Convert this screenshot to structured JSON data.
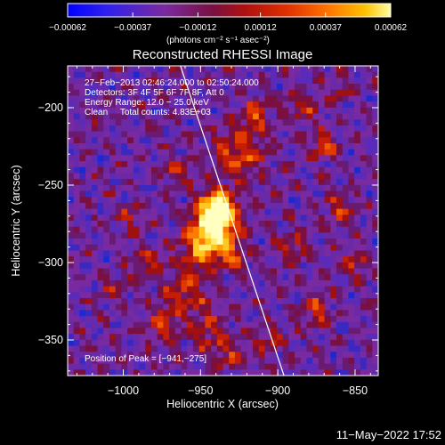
{
  "chart_data": {
    "type": "heatmap",
    "title": "Reconstructed RHESSI Image",
    "xlabel": "Heliocentric X (arcsec)",
    "ylabel": "Heliocentric Y (arcsec)",
    "xlim": [
      -1036,
      -835
    ],
    "ylim": [
      -373,
      -173
    ],
    "xticks": [
      -1000,
      -950,
      -900,
      -850
    ],
    "xtick_labels": [
      "−1000",
      "−950",
      "−900",
      "−850"
    ],
    "yticks": [
      -200,
      -250,
      -300,
      -350
    ],
    "ytick_labels": [
      "−200",
      "−250",
      "−300",
      "−350"
    ],
    "colorbar": {
      "range": [
        -0.00062,
        0.00062
      ],
      "ticks": [
        -0.00062,
        -0.00037,
        -0.00012,
        0.00012,
        0.00037,
        0.00062
      ],
      "tick_labels": [
        "−0.00062",
        "−0.00037",
        "−0.00012",
        "0.00012",
        "0.00037",
        "0.00062"
      ],
      "unit_label": "(photons cm⁻² s⁻¹ asec⁻²)",
      "colors": [
        "#0000ff",
        "#5a1fd0",
        "#7a2aa0",
        "#7a1040",
        "#b01010",
        "#e03000",
        "#ff7000",
        "#ffb000",
        "#ffff80"
      ]
    },
    "info_lines": [
      "27−Feb−2013 02:46:24.000 to 02:50:24.000",
      "Detectors: 3F 4F 5F 6F 7F 8F, Att 0",
      "Energy Range: 12.0 − 25.0 keV",
      "Clean     Total counts: 4.83E+03"
    ],
    "peak_label": "Position of Peak = [−941,−275]",
    "peak": [
      -941,
      -275
    ],
    "limb_line": [
      [
        -963,
        -173
      ],
      [
        -896,
        -373
      ]
    ]
  },
  "timestamp": "11−May−2022 17:52"
}
